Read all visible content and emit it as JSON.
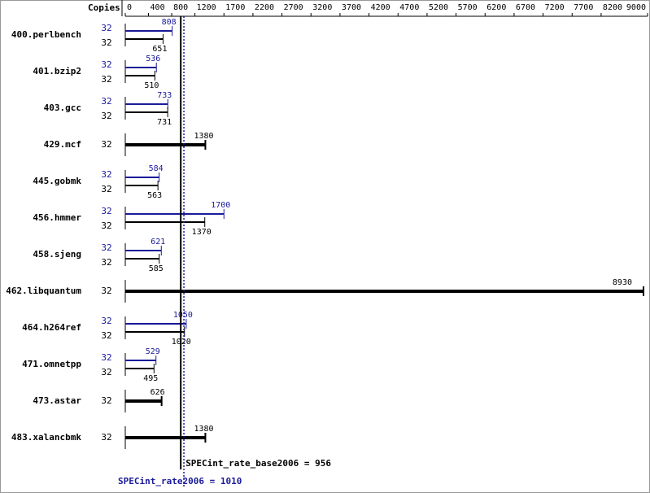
{
  "chart_data": {
    "type": "bar",
    "orientation": "horizontal",
    "copies_header": "Copies",
    "categories": [
      "400.perlbench",
      "401.bzip2",
      "403.gcc",
      "429.mcf",
      "445.gobmk",
      "456.hmmer",
      "458.sjeng",
      "462.libquantum",
      "464.h264ref",
      "471.omnetpp",
      "473.astar",
      "483.xalancbmk"
    ],
    "series": [
      {
        "color": "#1a1a9a",
        "values": [
          808,
          536,
          733,
          null,
          584,
          1700,
          621,
          null,
          1050,
          529,
          null,
          null
        ],
        "copies": [
          32,
          32,
          32,
          null,
          32,
          32,
          32,
          null,
          32,
          32,
          null,
          null
        ]
      },
      {
        "color": "#000000",
        "values": [
          651,
          510,
          731,
          1380,
          563,
          1370,
          585,
          8930,
          1020,
          495,
          626,
          1380
        ],
        "copies": [
          32,
          32,
          32,
          32,
          32,
          32,
          32,
          32,
          32,
          32,
          32,
          32
        ]
      }
    ],
    "xlim": [
      0,
      9000
    ],
    "xticks": [
      0,
      400,
      800,
      1200,
      1700,
      2200,
      2700,
      3200,
      3700,
      4200,
      4700,
      5200,
      5700,
      6200,
      6700,
      7200,
      7700,
      8200,
      9000
    ],
    "reference_lines": [
      {
        "value": 956,
        "label": "SPECint_rate_base2006 = 956",
        "color": "#000000",
        "dashed": false
      },
      {
        "value": 1010,
        "label": "SPECint_rate2006 = 1010",
        "color": "#1a1a9a",
        "dashed": true
      }
    ]
  }
}
